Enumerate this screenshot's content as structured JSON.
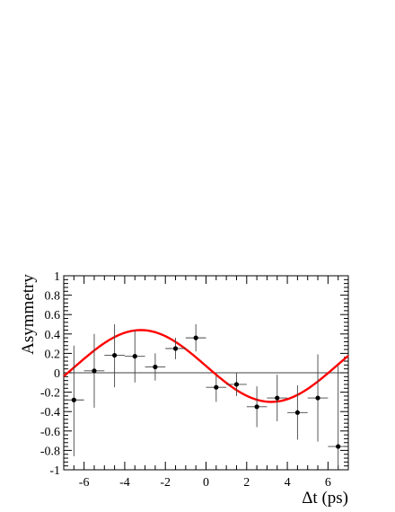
{
  "chart_data": {
    "type": "scatter",
    "xlabel": "Δt (ps)",
    "ylabel": "Asymmetry",
    "xlim": [
      -7,
      7
    ],
    "ylim": [
      -1,
      1
    ],
    "x_ticks": [
      -6,
      -4,
      -2,
      0,
      2,
      4,
      6
    ],
    "x_tick_labels": [
      "-6",
      "-4",
      "-2",
      "0",
      "2",
      "4",
      "6"
    ],
    "y_ticks": [
      -1,
      -0.8,
      -0.6,
      -0.4,
      -0.2,
      0,
      0.2,
      0.4,
      0.6,
      0.8,
      1
    ],
    "y_tick_labels": [
      "-1",
      "-0.8",
      "-0.6",
      "-0.4",
      "-0.2",
      "0",
      "0.2",
      "0.4",
      "0.6",
      "0.8",
      "1"
    ],
    "grid": false,
    "zero_line": true,
    "points": [
      {
        "x": -6.5,
        "y": -0.28,
        "yerr_lo": 0.58,
        "yerr_hi": 0.56,
        "xerr": 0.5
      },
      {
        "x": -5.5,
        "y": 0.02,
        "yerr_lo": 0.38,
        "yerr_hi": 0.38,
        "xerr": 0.5
      },
      {
        "x": -4.5,
        "y": 0.18,
        "yerr_lo": 0.33,
        "yerr_hi": 0.32,
        "xerr": 0.5
      },
      {
        "x": -3.5,
        "y": 0.17,
        "yerr_lo": 0.27,
        "yerr_hi": 0.27,
        "xerr": 0.5
      },
      {
        "x": -2.5,
        "y": 0.06,
        "yerr_lo": 0.14,
        "yerr_hi": 0.14,
        "xerr": 0.5
      },
      {
        "x": -1.5,
        "y": 0.25,
        "yerr_lo": 0.11,
        "yerr_hi": 0.11,
        "xerr": 0.5
      },
      {
        "x": -0.5,
        "y": 0.36,
        "yerr_lo": 0.14,
        "yerr_hi": 0.14,
        "xerr": 0.5
      },
      {
        "x": 0.5,
        "y": -0.15,
        "yerr_lo": 0.15,
        "yerr_hi": 0.12,
        "xerr": 0.5
      },
      {
        "x": 1.5,
        "y": -0.12,
        "yerr_lo": 0.12,
        "yerr_hi": 0.12,
        "xerr": 0.5
      },
      {
        "x": 2.5,
        "y": -0.35,
        "yerr_lo": 0.21,
        "yerr_hi": 0.21,
        "xerr": 0.5
      },
      {
        "x": 3.5,
        "y": -0.26,
        "yerr_lo": 0.24,
        "yerr_hi": 0.24,
        "xerr": 0.5
      },
      {
        "x": 4.5,
        "y": -0.41,
        "yerr_lo": 0.28,
        "yerr_hi": 0.28,
        "xerr": 0.5
      },
      {
        "x": 5.5,
        "y": -0.26,
        "yerr_lo": 0.45,
        "yerr_hi": 0.45,
        "xerr": 0.5
      },
      {
        "x": 6.5,
        "y": -0.76,
        "yerr_lo": 0.43,
        "yerr_hi": 0.83,
        "xerr": 0.5
      }
    ],
    "fit_curve": {
      "amplitude": -0.37,
      "omega": 0.49,
      "phase": 0.07,
      "x_range": [
        -7,
        7
      ],
      "color": "#ff0000"
    },
    "colors": {
      "points": "#000000",
      "fit": "#ff0000",
      "axes": "#000000"
    }
  }
}
